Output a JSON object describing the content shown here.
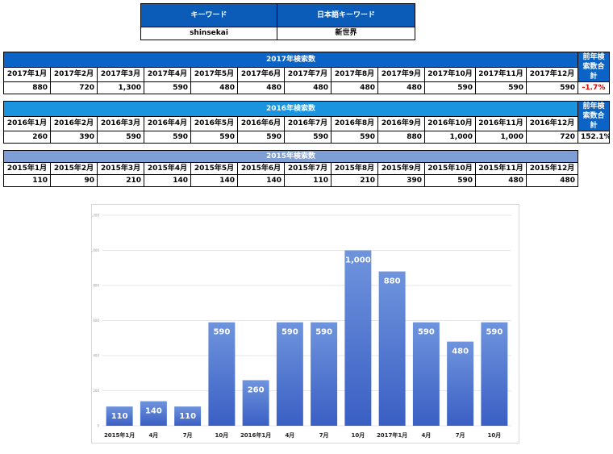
{
  "keyword_table": {
    "header_keyword": "キーワード",
    "header_jp_keyword": "日本語キーワード",
    "keyword": "shinsekai",
    "jp_keyword": "新世界"
  },
  "tables": [
    {
      "title": "2017年検索数",
      "months": [
        "2017年1月",
        "2017年2月",
        "2017年3月",
        "2017年4月",
        "2017年5月",
        "2017年6月",
        "2017年7月",
        "2017年8月",
        "2017年9月",
        "2017年10月",
        "2017年11月",
        "2017年12月"
      ],
      "values": [
        "880",
        "720",
        "1,300",
        "590",
        "480",
        "480",
        "480",
        "480",
        "480",
        "590",
        "590",
        "590"
      ],
      "side_label": "前年検索数合計",
      "side_value": "-1.7%"
    },
    {
      "title": "2016年検索数",
      "months": [
        "2016年1月",
        "2016年2月",
        "2016年3月",
        "2016年4月",
        "2016年5月",
        "2016年6月",
        "2016年7月",
        "2016年8月",
        "2016年9月",
        "2016年10月",
        "2016年11月",
        "2016年12月"
      ],
      "values": [
        "260",
        "390",
        "590",
        "590",
        "590",
        "590",
        "590",
        "590",
        "880",
        "1,000",
        "1,000",
        "720"
      ],
      "side_label": "前年検索数合計",
      "side_value": "152.1%"
    },
    {
      "title": "2015年検索数",
      "months": [
        "2015年1月",
        "2015年2月",
        "2015年3月",
        "2015年4月",
        "2015年5月",
        "2015年6月",
        "2015年7月",
        "2015年8月",
        "2015年9月",
        "2015年10月",
        "2015年11月",
        "2015年12月"
      ],
      "values": [
        "110",
        "90",
        "210",
        "140",
        "140",
        "140",
        "110",
        "210",
        "390",
        "590",
        "480",
        "480"
      ]
    }
  ],
  "colors": {
    "bar_top": "#6f94dd",
    "bar_bottom": "#3a5fc4",
    "neg": "#e00000"
  },
  "chart_data": {
    "type": "bar",
    "categories": [
      "2015年1月",
      "4月",
      "7月",
      "10月",
      "2016年1月",
      "4月",
      "7月",
      "10月",
      "2017年1月",
      "4月",
      "7月",
      "10月"
    ],
    "values": [
      110,
      140,
      110,
      590,
      260,
      590,
      590,
      1000,
      880,
      590,
      480,
      590
    ],
    "data_labels": [
      "110",
      "140",
      "110",
      "590",
      "260",
      "590",
      "590",
      "1,000",
      "880",
      "590",
      "480",
      "590"
    ],
    "y_ticks": [
      "0",
      "200",
      "400",
      "600",
      "800",
      "1,000",
      "1,200"
    ],
    "ylim": [
      0,
      1200
    ],
    "grid": true,
    "title": "",
    "xlabel": "",
    "ylabel": ""
  }
}
